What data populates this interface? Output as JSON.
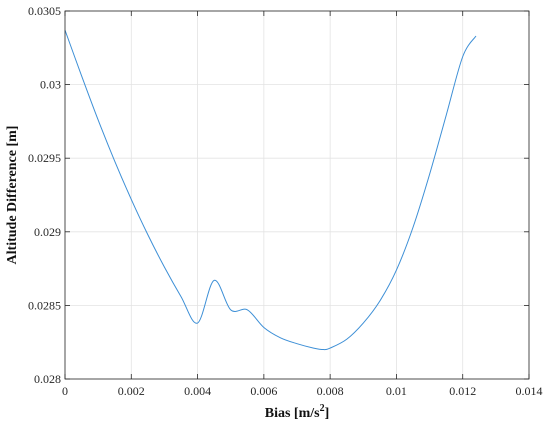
{
  "chart_data": {
    "type": "line",
    "title": "",
    "xlabel": "Bias [m/s",
    "xlabel_sup": "2",
    "xlabel_suffix": "]",
    "ylabel": "Altitude Difference [m]",
    "xlim": [
      0,
      0.014
    ],
    "ylim": [
      0.028,
      0.0305
    ],
    "grid": true,
    "x_ticks": [
      0,
      0.002,
      0.004,
      0.006,
      0.008,
      0.01,
      0.012,
      0.014
    ],
    "x_tick_labels": [
      "0",
      "0.002",
      "0.004",
      "0.006",
      "0.008",
      "0.01",
      "0.012",
      "0.014"
    ],
    "y_ticks": [
      0.028,
      0.0285,
      0.029,
      0.0295,
      0.03,
      0.0305
    ],
    "y_tick_labels": [
      "0.028",
      "0.0285",
      "0.029",
      "0.0295",
      "0.03",
      "0.0305"
    ],
    "series": [
      {
        "color": "#3d8fd6",
        "x": [
          0,
          0.0005,
          0.001,
          0.0015,
          0.002,
          0.0025,
          0.003,
          0.0035,
          0.004,
          0.0045,
          0.005,
          0.0055,
          0.006,
          0.0065,
          0.007,
          0.0075,
          0.0078,
          0.008,
          0.0085,
          0.009,
          0.0095,
          0.01,
          0.0105,
          0.011,
          0.0115,
          0.012,
          0.0124
        ],
        "y": [
          0.03037,
          0.03006,
          0.02976,
          0.02948,
          0.02922,
          0.02898,
          0.02876,
          0.02856,
          0.02838,
          0.02867,
          0.02847,
          0.02847,
          0.02835,
          0.02828,
          0.02824,
          0.02821,
          0.0282,
          0.02821,
          0.02827,
          0.02838,
          0.02853,
          0.02874,
          0.02903,
          0.02939,
          0.02979,
          0.03019,
          0.03033
        ]
      }
    ]
  }
}
